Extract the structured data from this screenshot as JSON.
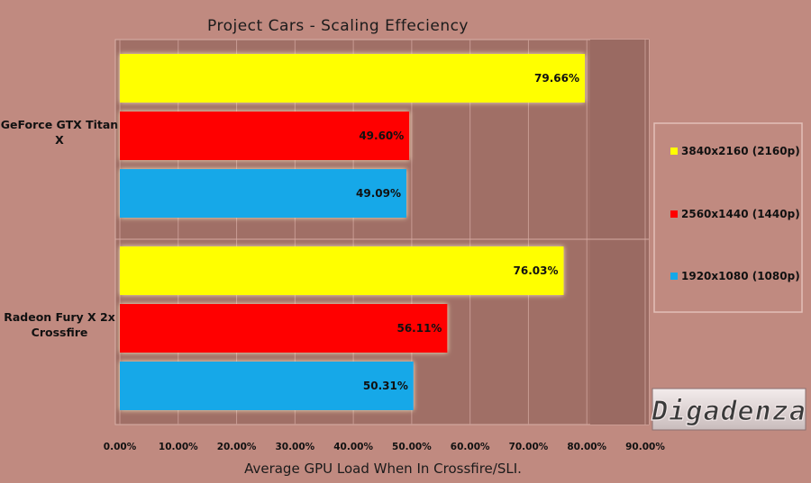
{
  "chart_data": {
    "type": "bar",
    "orientation": "horizontal",
    "title": "Project Cars - Scaling Effeciency",
    "xlabel": "Average GPU Load When In Crossfire/SLI.",
    "ylabel": "",
    "xlim": [
      0,
      90
    ],
    "x_ticks": [
      "0.00%",
      "10.00%",
      "20.00%",
      "30.00%",
      "40.00%",
      "50.00%",
      "60.00%",
      "70.00%",
      "80.00%",
      "90.00%"
    ],
    "categories": [
      "GeForce GTX Titan X",
      "Radeon Fury X 2x Crossfire"
    ],
    "series": [
      {
        "name": "3840x2160 (2160p)",
        "color": "#ffff00",
        "values": [
          79.66,
          76.03
        ],
        "labels": [
          "79.66%",
          "76.03%"
        ]
      },
      {
        "name": "2560x1440 (1440p)",
        "color": "#ff0000",
        "values": [
          49.6,
          56.11
        ],
        "labels": [
          "49.60%",
          "56.11%"
        ]
      },
      {
        "name": "1920x1080 (1080p)",
        "color": "#14a8e8",
        "values": [
          49.09,
          50.31
        ],
        "labels": [
          "49.09%",
          "50.31%"
        ]
      }
    ],
    "legend_order": [
      0,
      1,
      2
    ],
    "legend_position": "right",
    "grid": true
  },
  "watermark": {
    "text": "Digadenza"
  }
}
